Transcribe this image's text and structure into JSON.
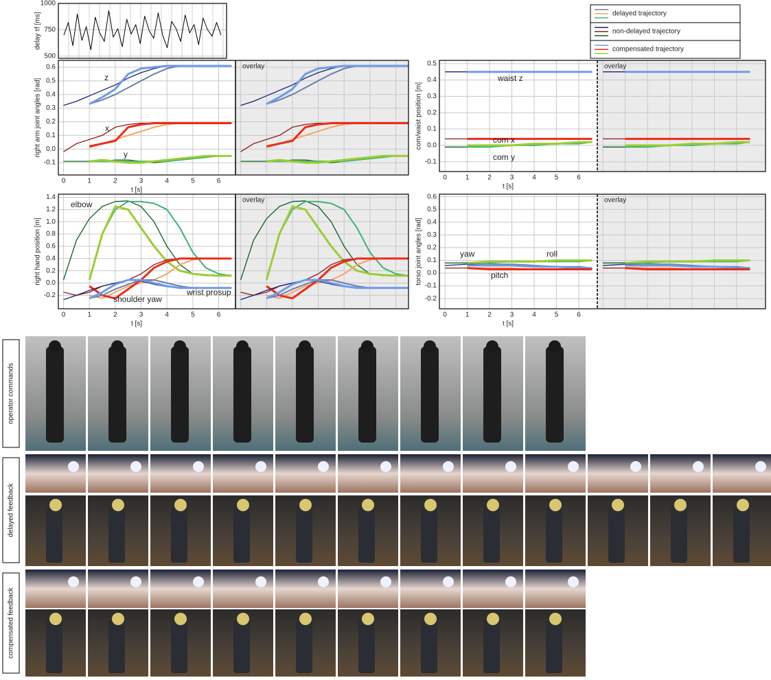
{
  "legend": [
    {
      "name": "delayed trajectory",
      "colors": [
        "#6a7fa8",
        "#f4a460",
        "#3cb371"
      ]
    },
    {
      "name": "non-delayed trajectory",
      "colors": [
        "#1a1f6e",
        "#8b1a1a",
        "#0b5e1f"
      ]
    },
    {
      "name": "compensated trajectory",
      "colors": [
        "#6f9be8",
        "#ee2a1a",
        "#9acd32"
      ]
    }
  ],
  "chart_data": [
    {
      "type": "line",
      "ylabel": "delay τf [ms]",
      "ylim": [
        480,
        1000
      ],
      "yticks": [
        500,
        750,
        1000
      ],
      "grid": true,
      "series": [
        {
          "color": "#000000",
          "values": [
            700,
            820,
            600,
            900,
            650,
            780,
            560,
            870,
            720,
            640,
            930,
            680,
            760,
            590,
            850,
            710,
            800,
            620,
            880,
            740,
            670,
            910,
            700,
            580,
            830,
            760,
            640,
            890,
            720,
            800,
            610,
            860,
            750,
            690,
            820,
            700
          ]
        }
      ]
    },
    {
      "type": "line",
      "ylabel": "right arm joint angles [rad]",
      "xlabel": "t [s]",
      "overlay_label": "overlay",
      "grid": true,
      "xlim": [
        -0.2,
        6.65
      ],
      "ylim": [
        -0.19,
        0.65
      ],
      "xticks": [
        0,
        1,
        2,
        3,
        4,
        5,
        6
      ],
      "yticks": [
        {
          "value": -0.1,
          "label": "-0.1"
        },
        {
          "value": 0,
          "label": "0.0"
        },
        0.1,
        0.2,
        0.3,
        0.4,
        0.5,
        0.6
      ],
      "annotations": [
        "z",
        "x",
        "y"
      ],
      "x": [
        0,
        0.5,
        1,
        1.5,
        2,
        2.5,
        3,
        3.5,
        4,
        4.5,
        5,
        5.5,
        6,
        6.5
      ],
      "series": [
        {
          "color": "#1a1f6e",
          "values": [
            0.32,
            0.35,
            0.39,
            0.43,
            0.47,
            0.52,
            0.56,
            0.59,
            0.61,
            0.61,
            0.61,
            0.61,
            0.61,
            0.61
          ]
        },
        {
          "color": "#6a7fa8",
          "values": [
            null,
            null,
            0.33,
            0.36,
            0.4,
            0.45,
            0.5,
            0.55,
            0.59,
            0.61,
            0.61,
            0.61,
            0.61,
            null
          ]
        },
        {
          "color": "#6f9be8",
          "values": [
            null,
            null,
            0.33,
            0.38,
            0.44,
            0.55,
            0.59,
            0.6,
            0.61,
            0.61,
            0.61,
            0.61,
            0.61,
            0.61
          ]
        },
        {
          "color": "#8b1a1a",
          "values": [
            -0.02,
            0.04,
            0.07,
            0.1,
            0.16,
            0.18,
            0.19,
            0.19,
            0.19,
            0.19,
            0.19,
            0.19,
            null,
            null
          ]
        },
        {
          "color": "#f4a460",
          "values": [
            null,
            null,
            0.01,
            0.04,
            0.07,
            0.1,
            0.13,
            0.16,
            0.18,
            0.19,
            0.19,
            0.19,
            null,
            null
          ]
        },
        {
          "color": "#ee2a1a",
          "values": [
            null,
            null,
            0.02,
            0.04,
            0.06,
            0.16,
            0.18,
            0.19,
            0.19,
            0.19,
            0.19,
            0.19,
            0.19,
            0.19
          ]
        },
        {
          "color": "#0b5e1f",
          "values": [
            -0.09,
            -0.09,
            -0.09,
            -0.09,
            -0.08,
            -0.08,
            -0.09,
            -0.1,
            -0.09,
            -0.08,
            -0.06,
            -0.05,
            -0.05,
            null
          ]
        },
        {
          "color": "#3cb371",
          "values": [
            null,
            null,
            -0.09,
            -0.09,
            -0.09,
            -0.09,
            -0.09,
            -0.09,
            -0.09,
            -0.08,
            -0.07,
            -0.06,
            -0.05,
            -0.05
          ]
        },
        {
          "color": "#9acd32",
          "values": [
            null,
            null,
            -0.09,
            -0.08,
            -0.09,
            -0.1,
            -0.1,
            -0.09,
            -0.08,
            -0.07,
            -0.06,
            -0.05,
            -0.05,
            -0.05
          ]
        }
      ]
    },
    {
      "type": "line",
      "ylabel": "com/waist position [m]",
      "xlabel": "t [s]",
      "overlay_label": "overlay",
      "grid": true,
      "xlim": [
        -0.25,
        6.83
      ],
      "ylim": [
        -0.16,
        0.52
      ],
      "xticks": [
        0,
        1,
        2,
        3,
        4,
        5,
        6
      ],
      "yticks": [
        {
          "value": -0.1,
          "label": "-0.1"
        },
        {
          "value": 0,
          "label": "0.0"
        },
        0.1,
        0.2,
        0.3,
        0.4,
        0.5
      ],
      "annotations": [
        "waist z",
        "com x",
        "com y"
      ],
      "x": [
        0,
        1,
        2,
        3,
        4,
        5,
        6,
        6.6
      ],
      "series": [
        {
          "color": "#1a1f6e",
          "values": [
            0.45,
            0.45,
            0.45,
            0.45,
            0.45,
            0.45,
            0.45,
            0.45
          ]
        },
        {
          "color": "#6a7fa8",
          "values": [
            null,
            0.45,
            0.45,
            0.45,
            0.45,
            0.45,
            0.45,
            0.45
          ]
        },
        {
          "color": "#6f9be8",
          "values": [
            null,
            0.45,
            0.45,
            0.45,
            0.45,
            0.45,
            0.45,
            0.45
          ]
        },
        {
          "color": "#8b1a1a",
          "values": [
            0.04,
            0.04,
            0.04,
            0.04,
            0.04,
            0.04,
            0.04,
            0.04
          ]
        },
        {
          "color": "#f4a460",
          "values": [
            null,
            0.04,
            0.04,
            0.04,
            0.04,
            0.04,
            0.04,
            0.04
          ]
        },
        {
          "color": "#ee2a1a",
          "values": [
            null,
            0.04,
            0.04,
            0.04,
            0.04,
            0.04,
            0.04,
            0.04
          ]
        },
        {
          "color": "#0b5e1f",
          "values": [
            -0.01,
            -0.01,
            0,
            0,
            0.01,
            0.01,
            0.02,
            0.02
          ]
        },
        {
          "color": "#3cb371",
          "values": [
            null,
            -0.01,
            -0.01,
            0,
            0,
            0.01,
            0.01,
            0.02
          ]
        },
        {
          "color": "#9acd32",
          "values": [
            null,
            0,
            0,
            0,
            0.01,
            0.01,
            0.02,
            0.02
          ]
        }
      ]
    },
    {
      "type": "line",
      "ylabel": "right hand position [m]",
      "xlabel": "t [s]",
      "overlay_label": "overlay",
      "grid": true,
      "xlim": [
        -0.2,
        6.65
      ],
      "ylim": [
        -0.42,
        1.45
      ],
      "xticks": [
        0,
        1,
        2,
        3,
        4,
        5,
        6
      ],
      "yticks": [
        {
          "value": -0.2,
          "label": "-0.2"
        },
        {
          "value": 0,
          "label": "0.0"
        },
        0.2,
        0.4,
        0.6,
        0.8,
        {
          "value": 1,
          "label": "1.0"
        },
        1.2,
        1.4
      ],
      "annotations": [
        "elbow",
        "shoulder yaw",
        "wrist prosup"
      ],
      "x": [
        0,
        0.5,
        1,
        1.5,
        2,
        2.5,
        3,
        3.5,
        4,
        4.5,
        5,
        5.5,
        6,
        6.5
      ],
      "series": [
        {
          "color": "#0b5e1f",
          "values": [
            0.05,
            0.7,
            1.05,
            1.25,
            1.33,
            1.34,
            1.25,
            1,
            0.6,
            0.3,
            0.15,
            0.12,
            0.12,
            0.12
          ]
        },
        {
          "color": "#3cb371",
          "values": [
            null,
            null,
            0.05,
            0.8,
            1.2,
            1.33,
            1.33,
            1.3,
            1.2,
            0.9,
            0.5,
            0.25,
            0.15,
            0.12
          ]
        },
        {
          "color": "#9acd32",
          "values": [
            null,
            null,
            0.05,
            0.8,
            1.25,
            1.2,
            0.9,
            0.6,
            0.35,
            0.2,
            0.15,
            0.13,
            0.12,
            0.12
          ]
        },
        {
          "color": "#8b1a1a",
          "values": [
            -0.15,
            -0.2,
            -0.15,
            -0.05,
            0,
            0.05,
            0.15,
            0.3,
            0.38,
            0.4,
            0.4,
            0.4,
            null,
            null
          ]
        },
        {
          "color": "#f4a460",
          "values": [
            null,
            null,
            -0.2,
            -0.25,
            -0.15,
            -0.05,
            0,
            0.05,
            0.15,
            0.3,
            0.38,
            0.4,
            0.4,
            null
          ]
        },
        {
          "color": "#ee2a1a",
          "values": [
            null,
            null,
            -0.05,
            -0.2,
            -0.25,
            -0.1,
            0.05,
            0.25,
            0.35,
            0.4,
            0.4,
            0.4,
            0.4,
            0.4
          ]
        },
        {
          "color": "#1a1f6e",
          "values": [
            -0.27,
            -0.2,
            -0.12,
            -0.05,
            0,
            0.05,
            0.03,
            -0.02,
            -0.06,
            -0.08,
            -0.08,
            -0.08,
            -0.08,
            null
          ]
        },
        {
          "color": "#6a7fa8",
          "values": [
            null,
            null,
            -0.25,
            -0.2,
            -0.1,
            -0.02,
            0.05,
            0.05,
            0,
            -0.05,
            -0.08,
            -0.08,
            -0.08,
            -0.08
          ]
        },
        {
          "color": "#6f9be8",
          "values": [
            null,
            null,
            -0.25,
            -0.15,
            -0.02,
            0.05,
            0.05,
            0,
            -0.05,
            -0.08,
            -0.08,
            -0.08,
            -0.08,
            -0.08
          ]
        }
      ]
    },
    {
      "type": "line",
      "ylabel": "torso joint angles [rad]",
      "xlabel": "t [s]",
      "overlay_label": "overlay",
      "grid": true,
      "xlim": [
        -0.25,
        6.83
      ],
      "ylim": [
        -0.28,
        0.62
      ],
      "xticks": [
        0,
        1,
        2,
        3,
        4,
        5,
        6
      ],
      "yticks": [
        {
          "value": -0.2,
          "label": "-0.2"
        },
        {
          "value": -0.1,
          "label": "-0.1"
        },
        {
          "value": 0,
          "label": "0.0"
        },
        0.1,
        0.2,
        0.3,
        0.4,
        0.5,
        0.6
      ],
      "annotations": [
        "yaw",
        "roll",
        "pitch"
      ],
      "x": [
        0,
        1,
        2,
        3,
        4,
        5,
        6,
        6.6
      ],
      "series": [
        {
          "color": "#1a1f6e",
          "values": [
            0.06,
            0.07,
            0.07,
            0.06,
            0.05,
            0.05,
            0.04,
            0.04
          ]
        },
        {
          "color": "#6a7fa8",
          "values": [
            null,
            0.06,
            0.07,
            0.07,
            0.06,
            0.05,
            0.05,
            0.04
          ]
        },
        {
          "color": "#6f9be8",
          "values": [
            null,
            0.06,
            0.06,
            0.06,
            0.05,
            0.05,
            0.04,
            0.04
          ]
        },
        {
          "color": "#0b5e1f",
          "values": [
            0.08,
            0.08,
            0.09,
            0.09,
            0.09,
            0.09,
            0.1,
            0.1
          ]
        },
        {
          "color": "#3cb371",
          "values": [
            null,
            0.08,
            0.08,
            0.09,
            0.09,
            0.09,
            0.09,
            0.1
          ]
        },
        {
          "color": "#9acd32",
          "values": [
            null,
            0.08,
            0.09,
            0.09,
            0.09,
            0.1,
            0.1,
            0.1
          ]
        },
        {
          "color": "#8b1a1a",
          "values": [
            0.04,
            0.04,
            0.04,
            0.03,
            0.03,
            0.03,
            0.03,
            0.03
          ]
        },
        {
          "color": "#f4a460",
          "values": [
            null,
            0.04,
            0.04,
            0.04,
            0.03,
            0.03,
            0.03,
            0.03
          ]
        },
        {
          "color": "#ee2a1a",
          "values": [
            null,
            0.04,
            0.03,
            0.03,
            0.03,
            0.03,
            0.03,
            0.03
          ]
        }
      ]
    }
  ],
  "photo_rows": [
    "operator commands",
    "delayed feedback",
    "compensated feedback"
  ]
}
